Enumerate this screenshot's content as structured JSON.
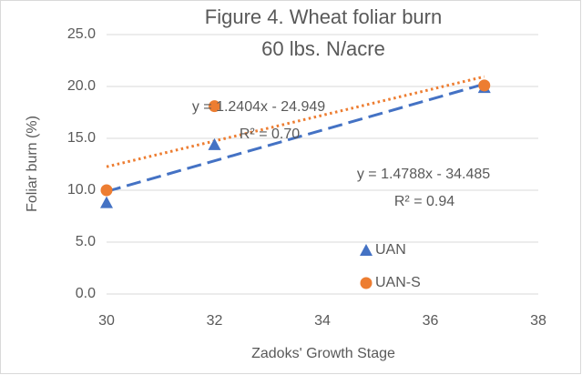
{
  "chart_data": {
    "type": "scatter",
    "title": "Figure 4. Wheat foliar burn",
    "subtitle": "60 lbs. N/acre",
    "x_label": "Zadoks' Growth Stage",
    "y_label": "Foliar burn (%)",
    "x": [
      30,
      32,
      37
    ],
    "series": [
      {
        "name": "UAN",
        "color": "#4472c4",
        "marker": "triangle",
        "values": [
          8.8,
          14.4,
          19.9
        ],
        "trendline": {
          "slope": 1.4788,
          "intercept": -34.485,
          "style": "dashed",
          "equation": "y = 1.4788x - 34.485",
          "r2": "R² = 0.94"
        }
      },
      {
        "name": "UAN-S",
        "color": "#ed7d31",
        "marker": "circle",
        "values": [
          10.0,
          18.1,
          20.1
        ],
        "trendline": {
          "slope": 1.2404,
          "intercept": -24.949,
          "style": "dotted",
          "equation": "y = 1.2404x - 24.949",
          "r2": "R² = 0.70"
        }
      }
    ],
    "xlim": [
      30,
      38
    ],
    "xticks": [
      30,
      32,
      34,
      36,
      38
    ],
    "ylim": [
      0,
      25
    ],
    "yticks": [
      {
        "value": 0,
        "label": "0.0"
      },
      {
        "value": 5,
        "label": "5.0"
      },
      {
        "value": 10,
        "label": "10.0"
      },
      {
        "value": 15,
        "label": "15.0"
      },
      {
        "value": 20,
        "label": "20.0"
      },
      {
        "value": 25,
        "label": "25.0"
      }
    ],
    "grid": true
  }
}
